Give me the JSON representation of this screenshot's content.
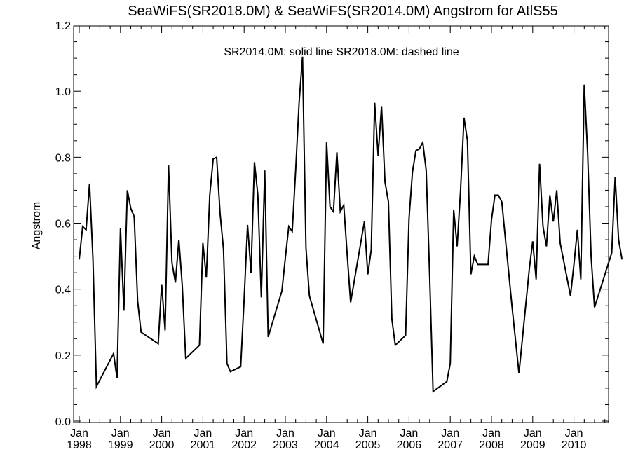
{
  "chart_data": {
    "type": "line",
    "title": "SeaWiFS(SR2018.0M) & SeaWiFS(SR2014.0M)  Angstrom for AtlS55",
    "annotation": "SR2014.0M: solid line   SR2018.0M: dashed line",
    "ylabel": "Angstrom",
    "xlabel": "",
    "xlim": [
      1998.0,
      2011.0
    ],
    "ylim": [
      0.0,
      1.2
    ],
    "y_ticks": [
      "0.0",
      "0.2",
      "0.4",
      "0.6",
      "0.8",
      "1.0",
      "1.2"
    ],
    "x_ticks": [
      {
        "top": "Jan",
        "bottom": "1998"
      },
      {
        "top": "Jan",
        "bottom": "1999"
      },
      {
        "top": "Jan",
        "bottom": "2000"
      },
      {
        "top": "Jan",
        "bottom": "2001"
      },
      {
        "top": "Jan",
        "bottom": "2002"
      },
      {
        "top": "Jan",
        "bottom": "2003"
      },
      {
        "top": "Jan",
        "bottom": "2004"
      },
      {
        "top": "Jan",
        "bottom": "2005"
      },
      {
        "top": "Jan",
        "bottom": "2006"
      },
      {
        "top": "Jan",
        "bottom": "2007"
      },
      {
        "top": "Jan",
        "bottom": "2008"
      },
      {
        "top": "Jan",
        "bottom": "2009"
      },
      {
        "top": "Jan",
        "bottom": "2010"
      }
    ],
    "grid": false,
    "series": [
      {
        "name": "SR2014.0M",
        "style": "solid",
        "color": "#000000",
        "points": [
          [
            1998.0,
            0.49
          ],
          [
            1998.083,
            0.59
          ],
          [
            1998.167,
            0.58
          ],
          [
            1998.25,
            0.72
          ],
          [
            1998.333,
            0.49
          ],
          [
            1998.417,
            0.105
          ],
          [
            1998.833,
            0.205
          ],
          [
            1998.917,
            0.13
          ],
          [
            1999.0,
            0.585
          ],
          [
            1999.083,
            0.335
          ],
          [
            1999.167,
            0.7
          ],
          [
            1999.25,
            0.645
          ],
          [
            1999.333,
            0.62
          ],
          [
            1999.417,
            0.365
          ],
          [
            1999.5,
            0.27
          ],
          [
            1999.917,
            0.235
          ],
          [
            2000.0,
            0.415
          ],
          [
            2000.083,
            0.275
          ],
          [
            2000.167,
            0.775
          ],
          [
            2000.25,
            0.48
          ],
          [
            2000.333,
            0.42
          ],
          [
            2000.417,
            0.55
          ],
          [
            2000.5,
            0.41
          ],
          [
            2000.583,
            0.19
          ],
          [
            2000.917,
            0.23
          ],
          [
            2001.0,
            0.54
          ],
          [
            2001.083,
            0.435
          ],
          [
            2001.167,
            0.685
          ],
          [
            2001.25,
            0.795
          ],
          [
            2001.333,
            0.8
          ],
          [
            2001.417,
            0.63
          ],
          [
            2001.5,
            0.52
          ],
          [
            2001.583,
            0.175
          ],
          [
            2001.667,
            0.15
          ],
          [
            2001.917,
            0.165
          ],
          [
            2002.0,
            0.37
          ],
          [
            2002.083,
            0.595
          ],
          [
            2002.167,
            0.45
          ],
          [
            2002.25,
            0.785
          ],
          [
            2002.333,
            0.685
          ],
          [
            2002.417,
            0.375
          ],
          [
            2002.5,
            0.76
          ],
          [
            2002.583,
            0.255
          ],
          [
            2002.917,
            0.395
          ],
          [
            2003.0,
            0.495
          ],
          [
            2003.083,
            0.59
          ],
          [
            2003.167,
            0.575
          ],
          [
            2003.25,
            0.76
          ],
          [
            2003.333,
            0.965
          ],
          [
            2003.417,
            1.105
          ],
          [
            2003.5,
            0.525
          ],
          [
            2003.583,
            0.38
          ],
          [
            2003.917,
            0.235
          ],
          [
            2004.0,
            0.845
          ],
          [
            2004.083,
            0.65
          ],
          [
            2004.167,
            0.635
          ],
          [
            2004.25,
            0.815
          ],
          [
            2004.333,
            0.635
          ],
          [
            2004.417,
            0.655
          ],
          [
            2004.5,
            0.505
          ],
          [
            2004.583,
            0.36
          ],
          [
            2004.917,
            0.605
          ],
          [
            2005.0,
            0.445
          ],
          [
            2005.083,
            0.52
          ],
          [
            2005.167,
            0.965
          ],
          [
            2005.25,
            0.805
          ],
          [
            2005.333,
            0.955
          ],
          [
            2005.417,
            0.725
          ],
          [
            2005.5,
            0.665
          ],
          [
            2005.583,
            0.31
          ],
          [
            2005.667,
            0.23
          ],
          [
            2005.917,
            0.26
          ],
          [
            2006.0,
            0.615
          ],
          [
            2006.083,
            0.755
          ],
          [
            2006.167,
            0.82
          ],
          [
            2006.25,
            0.825
          ],
          [
            2006.333,
            0.845
          ],
          [
            2006.417,
            0.76
          ],
          [
            2006.5,
            0.44
          ],
          [
            2006.583,
            0.09
          ],
          [
            2006.917,
            0.12
          ],
          [
            2007.0,
            0.175
          ],
          [
            2007.083,
            0.64
          ],
          [
            2007.167,
            0.53
          ],
          [
            2007.25,
            0.7
          ],
          [
            2007.333,
            0.92
          ],
          [
            2007.417,
            0.85
          ],
          [
            2007.5,
            0.445
          ],
          [
            2007.583,
            0.5
          ],
          [
            2007.667,
            0.475
          ],
          [
            2007.917,
            0.475
          ],
          [
            2008.0,
            0.61
          ],
          [
            2008.083,
            0.685
          ],
          [
            2008.167,
            0.685
          ],
          [
            2008.25,
            0.665
          ],
          [
            2008.5,
            0.345
          ],
          [
            2008.667,
            0.145
          ],
          [
            2008.917,
            0.46
          ],
          [
            2009.0,
            0.545
          ],
          [
            2009.083,
            0.43
          ],
          [
            2009.167,
            0.78
          ],
          [
            2009.25,
            0.59
          ],
          [
            2009.333,
            0.53
          ],
          [
            2009.417,
            0.685
          ],
          [
            2009.5,
            0.605
          ],
          [
            2009.583,
            0.7
          ],
          [
            2009.667,
            0.54
          ],
          [
            2009.917,
            0.38
          ],
          [
            2010.0,
            0.475
          ],
          [
            2010.083,
            0.58
          ],
          [
            2010.167,
            0.43
          ],
          [
            2010.25,
            1.02
          ],
          [
            2010.333,
            0.81
          ],
          [
            2010.417,
            0.5
          ],
          [
            2010.5,
            0.345
          ],
          [
            2010.917,
            0.51
          ],
          [
            2011.0,
            0.74
          ],
          [
            2011.083,
            0.55
          ],
          [
            2011.167,
            0.49
          ]
        ]
      }
    ]
  }
}
